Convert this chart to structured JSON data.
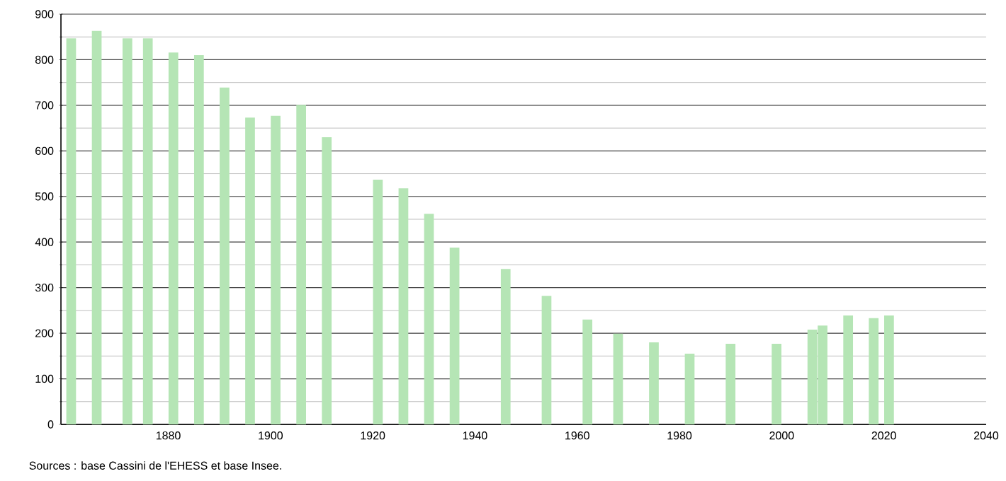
{
  "chart_data": {
    "type": "bar",
    "x": [
      1861,
      1866,
      1872,
      1876,
      1881,
      1886,
      1891,
      1896,
      1901,
      1906,
      1911,
      1921,
      1926,
      1931,
      1936,
      1946,
      1954,
      1962,
      1968,
      1975,
      1982,
      1990,
      1999,
      2006,
      2008,
      2013,
      2018,
      2021
    ],
    "values": [
      847,
      863,
      847,
      847,
      816,
      810,
      739,
      673,
      677,
      701,
      630,
      537,
      518,
      462,
      388,
      341,
      282,
      230,
      199,
      180,
      155,
      177,
      177,
      208,
      217,
      239,
      233,
      239
    ],
    "color": "#b5e5b5",
    "xlim": [
      1859,
      2040
    ],
    "xticks": [
      1880,
      1900,
      1920,
      1940,
      1960,
      1980,
      2000,
      2020,
      2040
    ],
    "ylim": [
      0,
      900
    ],
    "yticks": [
      0,
      100,
      200,
      300,
      400,
      500,
      600,
      700,
      800,
      900
    ],
    "grid": "y",
    "annotations": [
      "Sources : base Cassini de l'EHESS et base Insee."
    ]
  }
}
